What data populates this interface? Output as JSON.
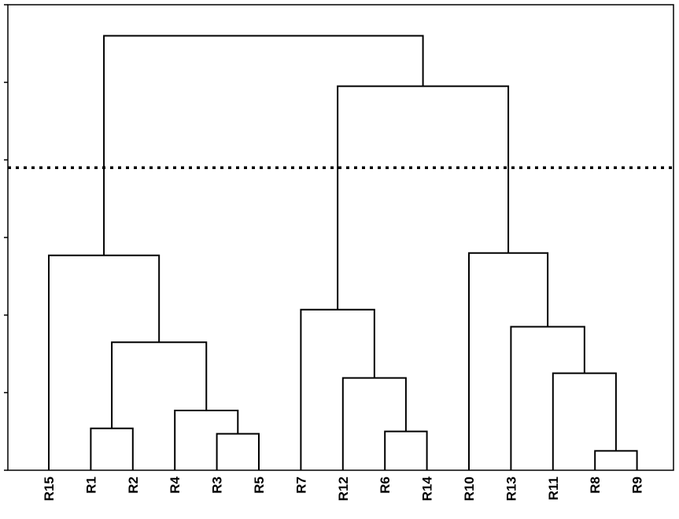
{
  "chart_data": {
    "type": "dendrogram",
    "title": "",
    "xlabel": "",
    "ylabel": "",
    "leaves": [
      "R15",
      "R1",
      "R2",
      "R4",
      "R3",
      "R5",
      "R7",
      "R12",
      "R6",
      "R14",
      "R10",
      "R13",
      "R11",
      "R8",
      "R9"
    ],
    "y_tick_count": 7,
    "ylim": [
      0,
      6
    ],
    "cut_height": 3.9,
    "merges": [
      {
        "id": "m1",
        "left": "R1",
        "right": "R2",
        "height": 0.54
      },
      {
        "id": "m2",
        "left": "R3",
        "right": "R5",
        "height": 0.47
      },
      {
        "id": "m3",
        "left": "R4",
        "right": "m2",
        "height": 0.77
      },
      {
        "id": "m4",
        "left": "m1",
        "right": "m3",
        "height": 1.65
      },
      {
        "id": "m5",
        "left": "R15",
        "right": "m4",
        "height": 2.77
      },
      {
        "id": "m6",
        "left": "R6",
        "right": "R14",
        "height": 0.5
      },
      {
        "id": "m7",
        "left": "R12",
        "right": "m6",
        "height": 1.19
      },
      {
        "id": "m8",
        "left": "R7",
        "right": "m7",
        "height": 2.07
      },
      {
        "id": "m9",
        "left": "R8",
        "right": "R9",
        "height": 0.25
      },
      {
        "id": "m10",
        "left": "R11",
        "right": "m9",
        "height": 1.25
      },
      {
        "id": "m11",
        "left": "R13",
        "right": "m10",
        "height": 1.85
      },
      {
        "id": "m12",
        "left": "R10",
        "right": "m11",
        "height": 2.8
      },
      {
        "id": "m13",
        "left": "m8",
        "right": "m12",
        "height": 4.95
      },
      {
        "id": "m14",
        "left": "m5",
        "right": "m13",
        "height": 5.6
      }
    ],
    "line_color": "#000000",
    "cut_line_style": "dotted"
  }
}
